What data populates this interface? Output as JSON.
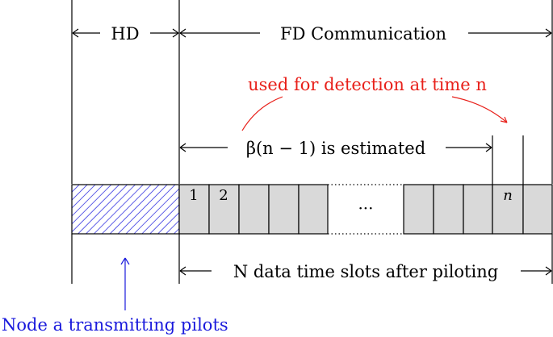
{
  "labels": {
    "hd": "HD",
    "fd_communication": "FD Communication",
    "detection_note": "used for detection at time n",
    "estimated": "β(n − 1) is estimated",
    "slot_1": "1",
    "slot_2": "2",
    "slot_n": "n",
    "ellipsis": "···",
    "data_slots": "N data time slots after piloting",
    "node_pilots": "Node a transmitting pilots"
  },
  "colors": {
    "ink": "#000000",
    "annotation_red": "#e8201a",
    "pilot_blue": "#1a1adc",
    "slot_gray": "#d9d9d9"
  }
}
